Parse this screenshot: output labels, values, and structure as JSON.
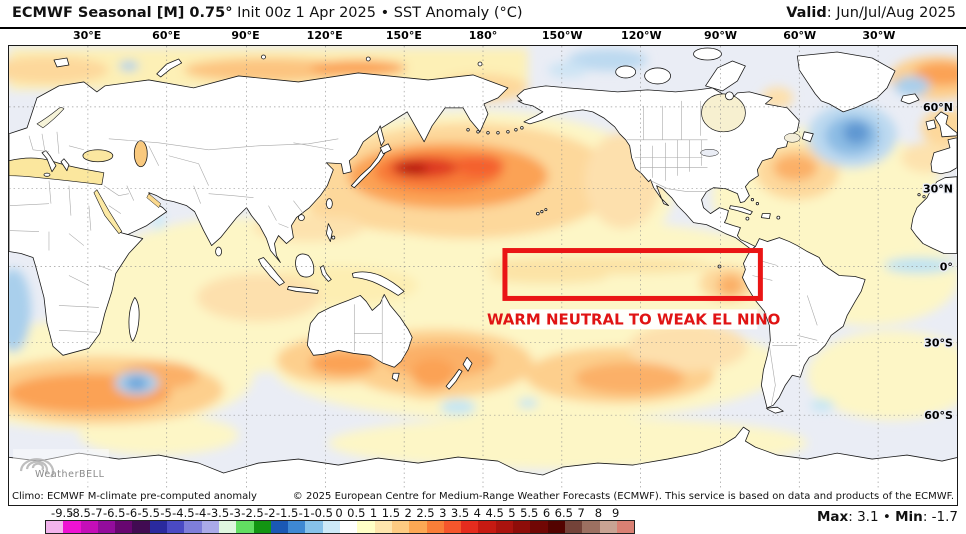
{
  "header": {
    "title_bold": "ECMWF Seasonal [M] 0.75°",
    "title_regular": " Init 00z 1 Apr 2025 • SST Anomaly (°C)",
    "valid_bold": "Valid",
    "valid_rest": ": Jun/Jul/Aug 2025"
  },
  "map": {
    "lon_labels": [
      "30°E",
      "60°E",
      "90°E",
      "120°E",
      "150°E",
      "180°",
      "150°W",
      "120°W",
      "90°W",
      "60°W",
      "30°W"
    ],
    "lat_labels": [
      "60°N",
      "30°N",
      "0°",
      "30°S",
      "60°S"
    ],
    "annotation": {
      "text": "WARM NEUTRAL TO WEAK EL NINO",
      "color": "#e01313"
    },
    "highlight_box_color": "#ea1515",
    "logo_text": "WeatherBELL"
  },
  "footer": {
    "climo": "Climo: ECMWF M-climate pre-computed anomaly",
    "copyright": "© 2025 European Centre for Medium-Range Weather Forecasts (ECMWF). This service is based on data and products of the ECMWF."
  },
  "colorbar": {
    "ticks": [
      "-9.5",
      "-8.5",
      "-7",
      "-6.5",
      "-6",
      "-5.5",
      "-5",
      "-4.5",
      "-4",
      "-3.5",
      "-3",
      "-2.5",
      "-2",
      "-1.5",
      "-1",
      "-0.5",
      "0",
      "0.5",
      "1",
      "1.5",
      "2",
      "2.5",
      "3",
      "3.5",
      "4",
      "4.5",
      "5",
      "5.5",
      "6",
      "6.5",
      "7",
      "8",
      "9"
    ],
    "segment_colors": [
      "#f2b3ec",
      "#ee12d2",
      "#c40eb8",
      "#930c9c",
      "#670670",
      "#410b52",
      "#2a2a9e",
      "#4a4ac4",
      "#7e7eda",
      "#aaaae8",
      "#dff7df",
      "#62de62",
      "#129412",
      "#1a58b4",
      "#3e88d2",
      "#86c2ea",
      "#cdeaf8",
      "#ffffff",
      "#ffffc6",
      "#fee5ad",
      "#fdcb82",
      "#fca854",
      "#f97e38",
      "#f5562c",
      "#e52c1e",
      "#c61a12",
      "#aa130e",
      "#8e0d09",
      "#710704",
      "#530300",
      "#744339",
      "#9c7061",
      "#c9a393",
      "#d98073"
    ]
  },
  "stats": {
    "max_label": "Max",
    "max_text": ": 3.1",
    "bullet": "•",
    "min_label": "Min",
    "min_text": ": -1.7"
  }
}
